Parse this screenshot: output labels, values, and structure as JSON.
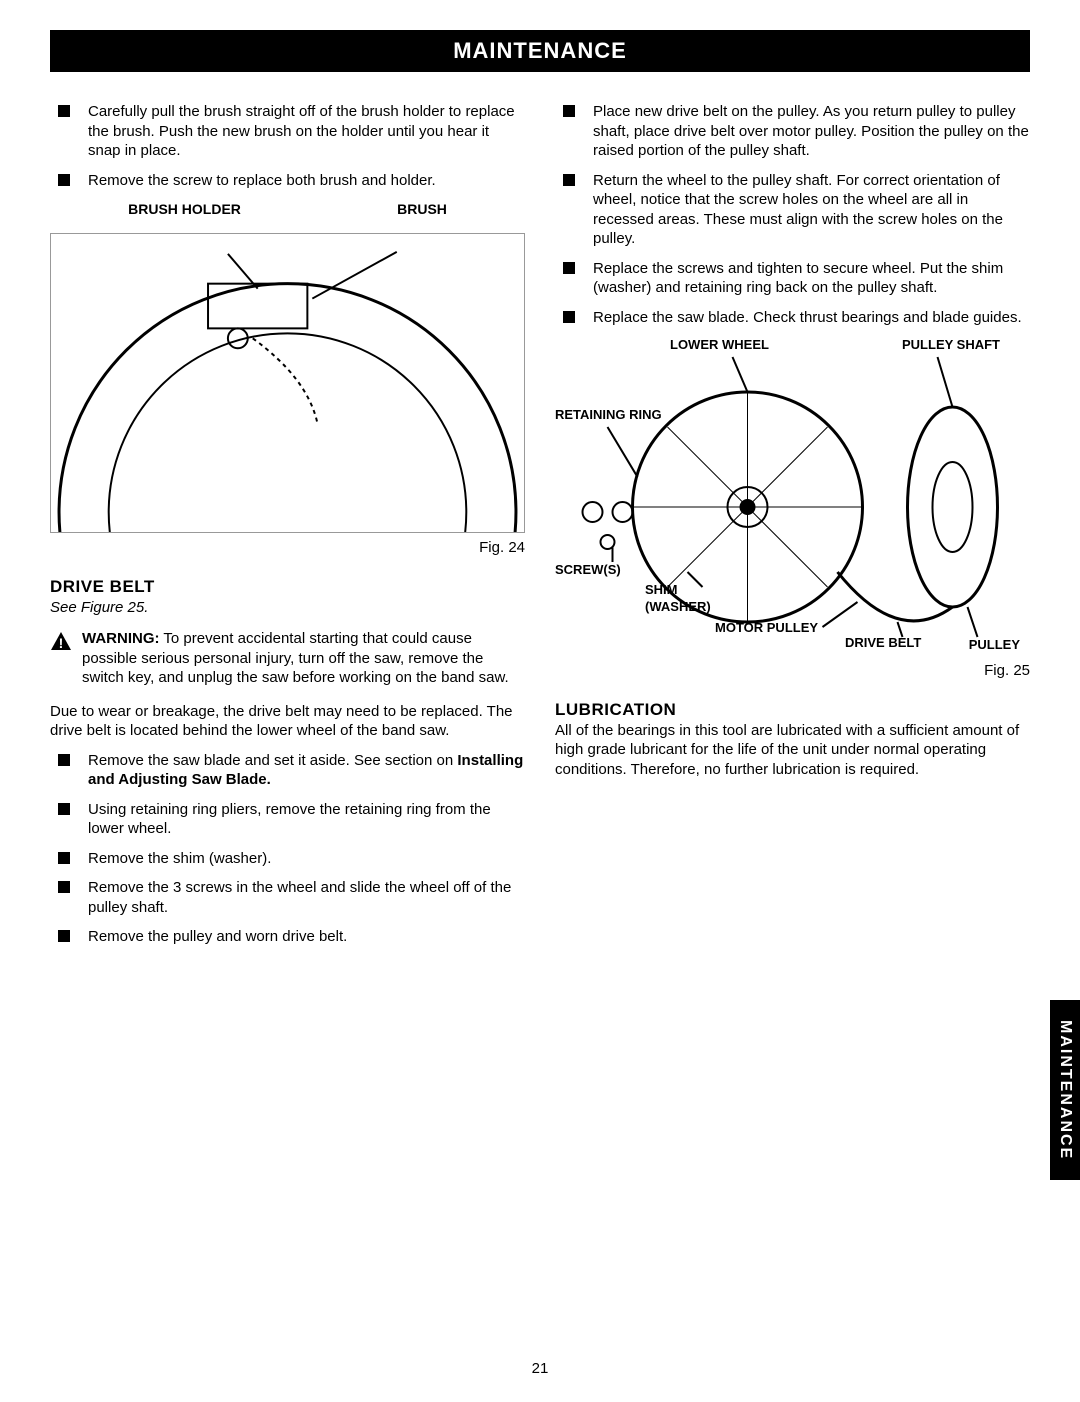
{
  "header": "MAINTENANCE",
  "left": {
    "top_bullets": [
      "Carefully pull the brush straight off of the brush holder to replace the brush. Push the new brush on the holder until you hear it snap in place.",
      "Remove the screw to replace both brush and holder."
    ],
    "fig24_label_left": "BRUSH HOLDER",
    "fig24_label_right": "BRUSH",
    "fig24_caption": "Fig. 24",
    "drive_belt_heading": "DRIVE BELT",
    "drive_belt_see": "See Figure 25.",
    "warning_label": "WARNING:",
    "warning_text": " To prevent accidental starting that could cause possible serious personal injury, turn off the saw, remove the switch key, and unplug the saw before working on the band saw.",
    "drive_belt_para": "Due to wear or breakage, the drive belt may need to be replaced. The drive belt is located behind the lower wheel of the band saw.",
    "drive_belt_bullets": [
      "Remove the saw blade and set it aside. See section on <b>Installing and Adjusting Saw Blade.</b>",
      "Using retaining ring pliers, remove the retaining ring from the lower wheel.",
      "Remove the shim (washer).",
      "Remove the 3 screws in the wheel and slide the wheel off of the pulley shaft.",
      "Remove the pulley and worn drive belt."
    ]
  },
  "right": {
    "top_bullets": [
      "Place new drive belt on the pulley. As you return pulley to pulley shaft, place drive belt over motor pulley. Position the pulley on the raised portion of the pulley shaft.",
      "Return the wheel to the pulley shaft. For correct orientation of wheel, notice that the screw holes on the wheel are all in recessed areas. These must align with the screw holes on the pulley.",
      "Replace the screws and tighten to secure wheel. Put the shim (washer) and retaining ring back on the pulley shaft.",
      "Replace the saw blade. Check thrust bearings and blade guides."
    ],
    "fig25_labels": {
      "lower_wheel": "LOWER WHEEL",
      "pulley_shaft": "PULLEY SHAFT",
      "retaining_ring": "RETAINING RING",
      "screws": "SCREW(S)",
      "shim": "SHIM\n(WASHER)",
      "motor_pulley": "MOTOR PULLEY",
      "drive_belt": "DRIVE BELT",
      "pulley": "PULLEY"
    },
    "fig25_caption": "Fig. 25",
    "lubrication_heading": "LUBRICATION",
    "lubrication_text": "All of the bearings in this tool are lubricated with a sufficient amount of high grade lubricant for the life of the unit under normal operating conditions. Therefore, no further lubrication is required."
  },
  "side_tab": "MAINTENANCE",
  "page_number": "21",
  "colors": {
    "black": "#000000",
    "white": "#ffffff"
  }
}
